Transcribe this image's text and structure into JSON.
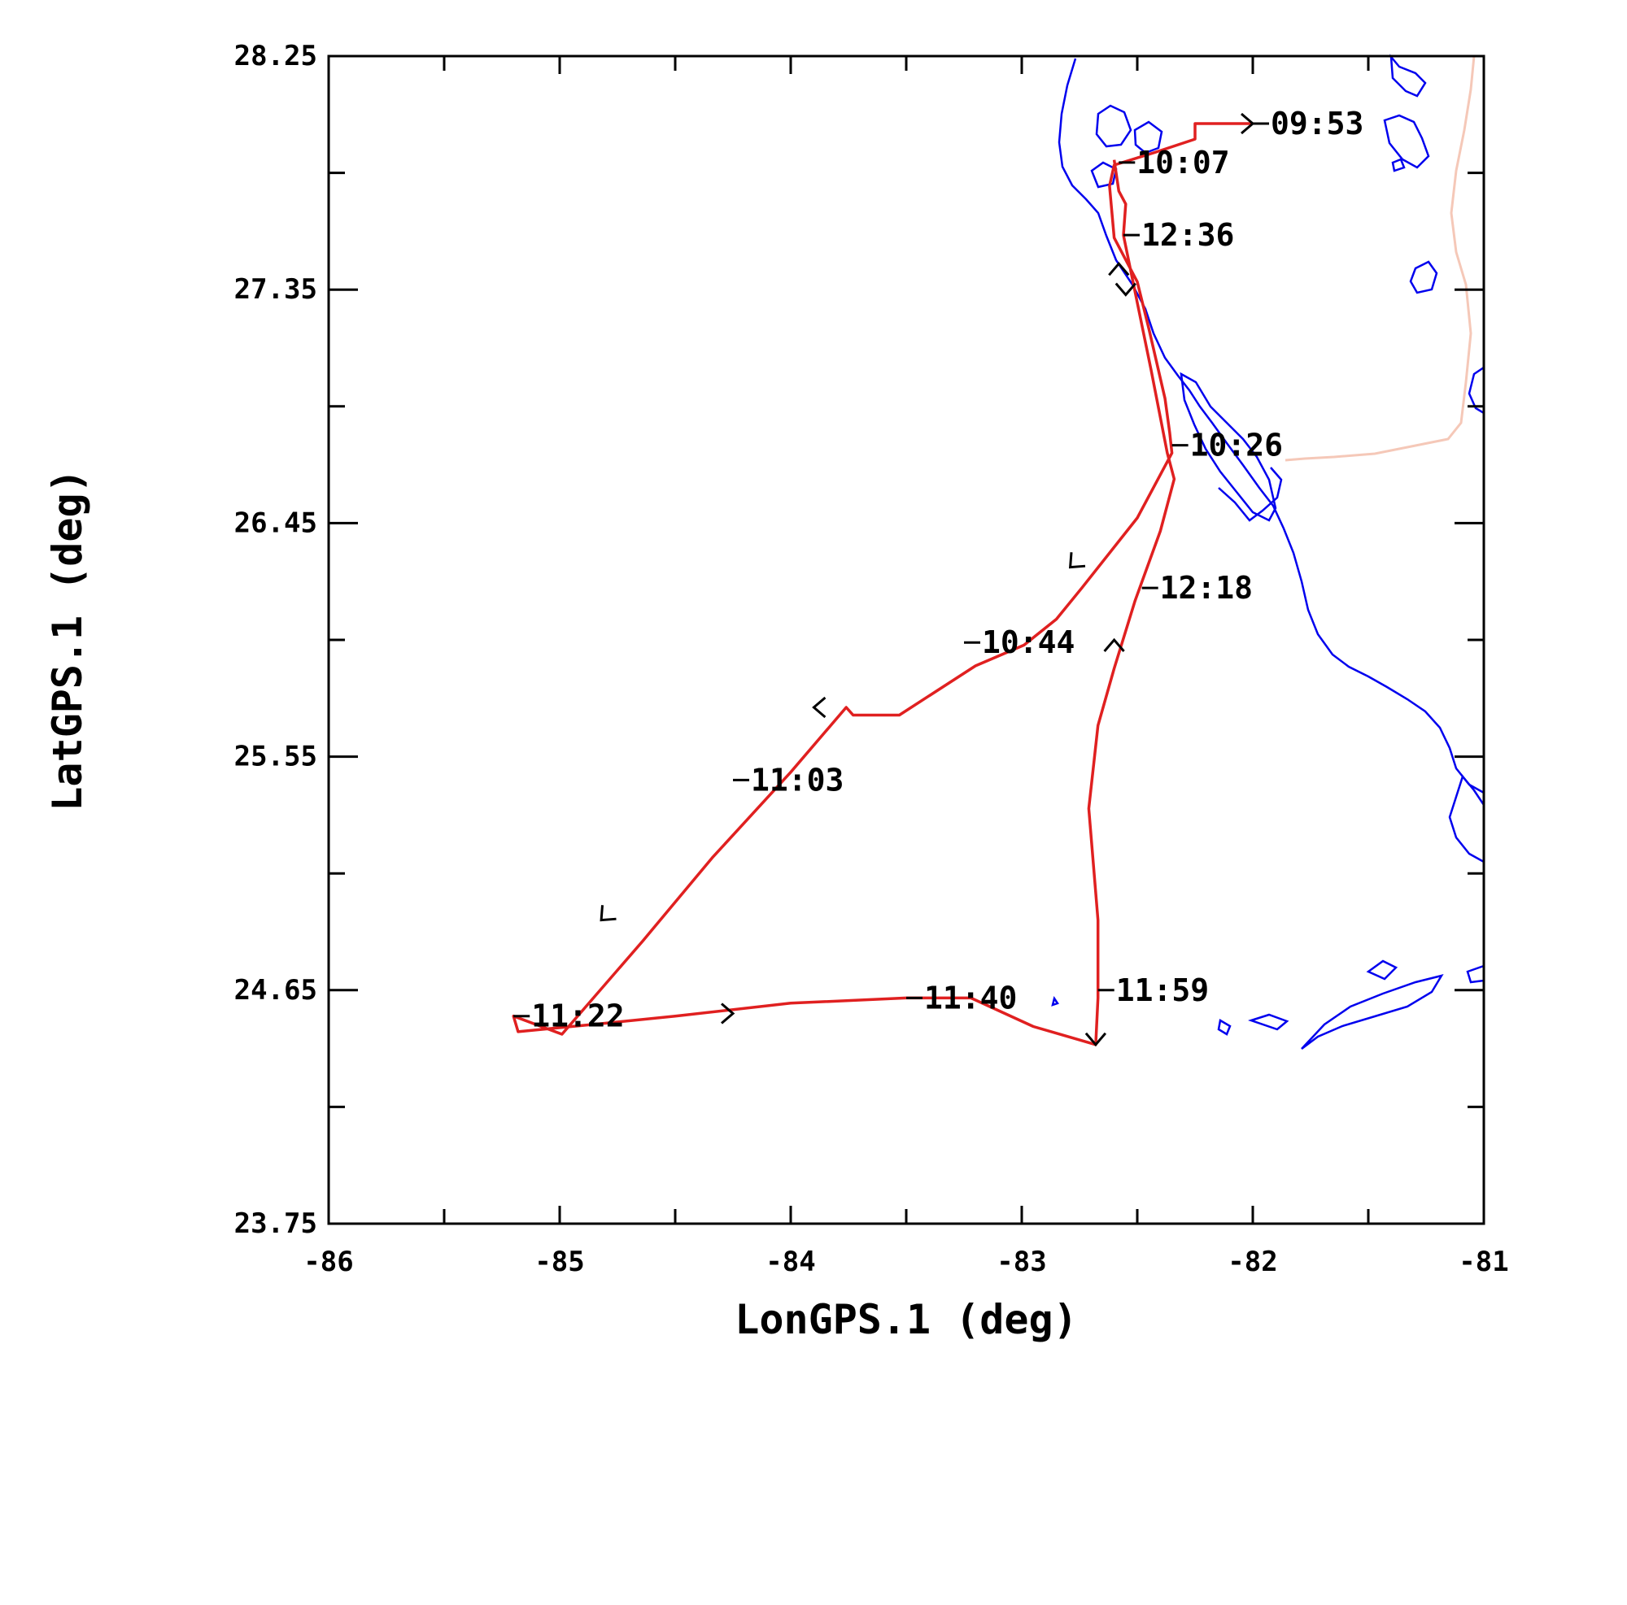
{
  "chart_data": {
    "type": "line",
    "xlabel": "LonGPS.1 (deg)",
    "ylabel": "LatGPS.1 (deg)",
    "xlim": [
      -86,
      -81
    ],
    "ylim": [
      23.75,
      28.25
    ],
    "x_ticks": [
      -86,
      -85,
      -84,
      -83,
      -82,
      -81
    ],
    "x_tick_labels": [
      "-86",
      "-85",
      "-84",
      "-83",
      "-82",
      "-81"
    ],
    "y_ticks": [
      23.75,
      24.65,
      25.55,
      26.45,
      27.35,
      28.25
    ],
    "y_tick_labels": [
      "23.75",
      "24.65",
      "25.55",
      "26.45",
      "27.35",
      "28.25"
    ],
    "grid": false,
    "colors": {
      "track": "#e02020",
      "coast": "#0000ee",
      "border": "#f5c8b8"
    },
    "series": [
      {
        "role": "flight-track",
        "points": [
          [
            -82.0,
            27.99
          ],
          [
            -82.25,
            27.99
          ],
          [
            -82.25,
            27.93
          ],
          [
            -82.42,
            27.88
          ],
          [
            -82.6,
            27.83
          ],
          [
            -82.62,
            27.75
          ],
          [
            -82.6,
            27.55
          ],
          [
            -82.5,
            27.38
          ],
          [
            -82.45,
            27.2
          ],
          [
            -82.38,
            26.93
          ],
          [
            -82.36,
            26.8
          ],
          [
            -82.35,
            26.72
          ],
          [
            -82.5,
            26.47
          ],
          [
            -82.74,
            26.2
          ],
          [
            -82.85,
            26.08
          ],
          [
            -82.99,
            25.98
          ],
          [
            -83.2,
            25.9
          ],
          [
            -83.53,
            25.71
          ],
          [
            -83.73,
            25.71
          ],
          [
            -83.76,
            25.74
          ],
          [
            -84.0,
            25.49
          ],
          [
            -84.34,
            25.16
          ],
          [
            -84.64,
            24.84
          ],
          [
            -84.99,
            24.48
          ],
          [
            -85.2,
            24.55
          ],
          [
            -85.18,
            24.49
          ],
          [
            -84.83,
            24.52
          ],
          [
            -84.5,
            24.55
          ],
          [
            -84.0,
            24.6
          ],
          [
            -83.5,
            24.62
          ],
          [
            -83.22,
            24.62
          ],
          [
            -82.95,
            24.51
          ],
          [
            -82.68,
            24.44
          ],
          [
            -82.67,
            24.62
          ],
          [
            -82.67,
            24.92
          ],
          [
            -82.71,
            25.35
          ],
          [
            -82.67,
            25.67
          ],
          [
            -82.6,
            25.89
          ],
          [
            -82.51,
            26.15
          ],
          [
            -82.4,
            26.42
          ],
          [
            -82.34,
            26.62
          ],
          [
            -82.37,
            26.72
          ],
          [
            -82.44,
            27.04
          ],
          [
            -82.5,
            27.3
          ],
          [
            -82.56,
            27.56
          ],
          [
            -82.55,
            27.68
          ],
          [
            -82.58,
            27.73
          ],
          [
            -82.6,
            27.85
          ]
        ]
      }
    ],
    "annotations": [
      {
        "text": "09:53",
        "x": -82.0,
        "y": 27.99
      },
      {
        "text": "10:07",
        "x": -82.58,
        "y": 27.84
      },
      {
        "text": "12:36",
        "x": -82.56,
        "y": 27.56
      },
      {
        "text": "10:26",
        "x": -82.35,
        "y": 26.75
      },
      {
        "text": "12:18",
        "x": -82.48,
        "y": 26.2
      },
      {
        "text": "10:44",
        "x": -83.25,
        "y": 25.99
      },
      {
        "text": "11:03",
        "x": -84.25,
        "y": 25.46
      },
      {
        "text": "11:22",
        "x": -85.2,
        "y": 24.55
      },
      {
        "text": "11:40",
        "x": -83.5,
        "y": 24.62
      },
      {
        "text": "11:59",
        "x": -82.67,
        "y": 24.65
      }
    ],
    "direction_arrows": [
      {
        "x": -82.0,
        "y": 27.99,
        "dir": "east"
      },
      {
        "x": -82.55,
        "y": 27.33,
        "dir": "south"
      },
      {
        "x": -82.58,
        "y": 27.45,
        "dir": "north"
      },
      {
        "x": -82.79,
        "y": 26.28,
        "dir": "southwest"
      },
      {
        "x": -83.9,
        "y": 25.74,
        "dir": "west"
      },
      {
        "x": -84.82,
        "y": 24.92,
        "dir": "southwest"
      },
      {
        "x": -84.25,
        "y": 24.56,
        "dir": "east"
      },
      {
        "x": -82.68,
        "y": 24.44,
        "dir": "south"
      },
      {
        "x": -82.6,
        "y": 26.0,
        "dir": "north"
      }
    ]
  }
}
